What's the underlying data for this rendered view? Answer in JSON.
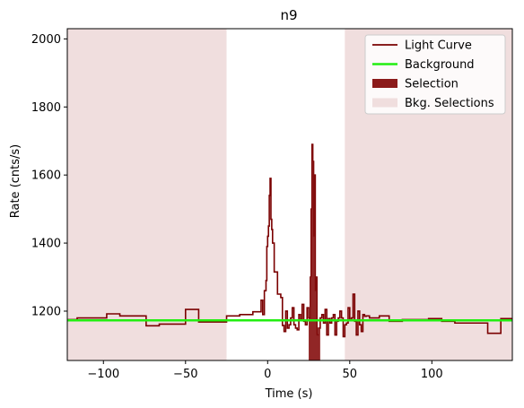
{
  "chart_data": {
    "type": "line",
    "title": "n9",
    "xlabel": "Time (s)",
    "ylabel": "Rate (cnts/s)",
    "xlim": [
      -122,
      149
    ],
    "ylim": [
      1055,
      2030
    ],
    "x_ticks": [
      -100,
      -50,
      0,
      50,
      100
    ],
    "y_ticks": [
      1200,
      1400,
      1600,
      1800,
      2000
    ],
    "grid": false,
    "legend_position": "top-right",
    "colors": {
      "light_curve": "#7a0000",
      "background": "#22ee11",
      "selection": "#8b1a1a",
      "bkg_selection": "#f0dede"
    },
    "legend": [
      {
        "label": "Light Curve",
        "kind": "line",
        "color": "#7a0000"
      },
      {
        "label": "Background",
        "kind": "line",
        "color": "#22ee11"
      },
      {
        "label": "Selection",
        "kind": "patch",
        "color": "#8b1a1a"
      },
      {
        "label": "Bkg. Selections",
        "kind": "patch",
        "color": "#f0dede"
      }
    ],
    "background_level": 1173,
    "selection": [
      [
        25,
        32
      ]
    ],
    "bkg_selections": [
      [
        -122,
        -25
      ],
      [
        47,
        149
      ]
    ],
    "series": [
      {
        "name": "Light Curve",
        "step_x": [
          -122,
          -116,
          -98,
          -90,
          -74,
          -66,
          -58,
          -50,
          -42,
          -34,
          -25,
          -17,
          -9,
          -4,
          -3,
          -2,
          -1,
          -0.5,
          0,
          0.5,
          1,
          1.5,
          2,
          2.5,
          3,
          4,
          6,
          8,
          9,
          10,
          11,
          12,
          13,
          14,
          15,
          16,
          17,
          18,
          19,
          20,
          21,
          22,
          23,
          24,
          25,
          26,
          26.5,
          27,
          27.5,
          28,
          28.5,
          29,
          29.5,
          30,
          31,
          32,
          33,
          34,
          35,
          36,
          37,
          38,
          39,
          40,
          41,
          42,
          43,
          44,
          45,
          46,
          47,
          48,
          49,
          50,
          51,
          52,
          53,
          54,
          55,
          56,
          57,
          58,
          59,
          60,
          62,
          64,
          68,
          74,
          82,
          98,
          106,
          114,
          126,
          134,
          142,
          149
        ],
        "step_y": [
          1175,
          1180,
          1192,
          1186,
          1157,
          1162,
          1162,
          1205,
          1168,
          1168,
          1186,
          1190,
          1198,
          1232,
          1190,
          1260,
          1290,
          1390,
          1420,
          1450,
          1540,
          1590,
          1470,
          1440,
          1400,
          1315,
          1250,
          1240,
          1158,
          1140,
          1200,
          1150,
          1160,
          1180,
          1210,
          1160,
          1150,
          1145,
          1190,
          1175,
          1220,
          1170,
          1160,
          1210,
          1180,
          1300,
          1500,
          1690,
          1640,
          1420,
          1600,
          1260,
          1300,
          1130,
          1150,
          1180,
          1190,
          1165,
          1205,
          1130,
          1178,
          1165,
          1180,
          1190,
          1130,
          1170,
          1180,
          1200,
          1180,
          1125,
          1160,
          1165,
          1210,
          1175,
          1180,
          1250,
          1170,
          1130,
          1200,
          1160,
          1140,
          1190,
          1185,
          1186,
          1180,
          1180,
          1186,
          1170,
          1175,
          1178,
          1170,
          1165,
          1165,
          1135,
          1178,
          1178
        ]
      }
    ]
  }
}
